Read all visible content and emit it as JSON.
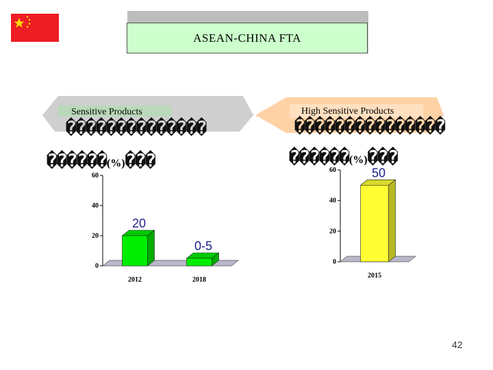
{
  "header": {
    "title": "ASEAN-CHINA FTA"
  },
  "flag": {
    "colors": {
      "field": "#ee1c25",
      "stars": "#ffde00"
    },
    "icon": "china-flag-icon"
  },
  "left_panel": {
    "label": "Sensitive Products",
    "glyph_line": "��������������",
    "pct_line_prefix": "������",
    "pct_symbol": "(%)",
    "pct_line_suffix": "���"
  },
  "right_panel": {
    "label": "High Sensitive Products",
    "glyph_line": "���������������",
    "pct_line_prefix": "������",
    "pct_symbol": "(%)",
    "pct_line_suffix": "���"
  },
  "chart_data": [
    {
      "type": "bar",
      "categories": [
        "2012",
        "2018"
      ],
      "values": [
        20,
        5
      ],
      "data_labels": [
        "20",
        "0-5"
      ],
      "ylim": [
        0,
        60
      ],
      "yticks": [
        "0",
        "20",
        "40",
        "60"
      ],
      "grid": false,
      "bar_color": "#00ee00"
    },
    {
      "type": "bar",
      "categories": [
        "2015"
      ],
      "values": [
        50
      ],
      "data_labels": [
        "50"
      ],
      "ylim": [
        0,
        60
      ],
      "yticks": [
        "0",
        "20",
        "40",
        "60"
      ],
      "grid": false,
      "bar_color": "#ffff33"
    }
  ],
  "footer": {
    "page_number": "42"
  }
}
